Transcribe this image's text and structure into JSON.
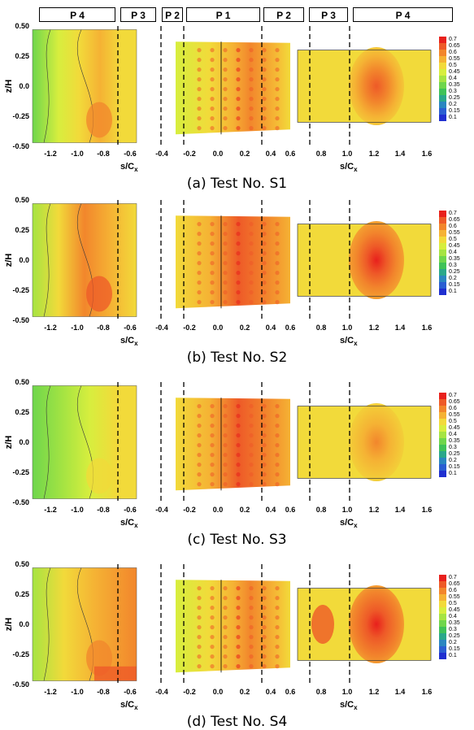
{
  "zones": [
    "P 4",
    "P 3",
    "P 2",
    "P 1",
    "P 2",
    "P 3",
    "P 4"
  ],
  "y_axis": {
    "label": "z/H",
    "ticks": [
      "0.50",
      "0.25",
      "0.0",
      "-0.25",
      "-0.50"
    ]
  },
  "x_axis": {
    "label_left": "s/C",
    "label_right": "s/C",
    "subscript": "x",
    "ticks_left": [
      "-1.2",
      "-1.0",
      "-0.8",
      "-0.6"
    ],
    "ticks_middle": [
      "-0.4",
      "-0.2",
      "0.0",
      "0.2",
      "0.4",
      "0.6"
    ],
    "ticks_right": [
      "0.8",
      "1.0",
      "1.2",
      "1.4",
      "1.6"
    ]
  },
  "legend": {
    "values": [
      "0.7",
      "0.65",
      "0.6",
      "0.55",
      "0.5",
      "0.45",
      "0.4",
      "0.35",
      "0.3",
      "0.25",
      "0.2",
      "0.15",
      "0.1"
    ],
    "colors": [
      "#e8201c",
      "#ee5a28",
      "#f2862c",
      "#f5b234",
      "#f2da3a",
      "#d7ee3e",
      "#a6e442",
      "#6fd64c",
      "#3fc258",
      "#2aa88a",
      "#2a86c0",
      "#2a5ed2",
      "#1f2fd0"
    ]
  },
  "panels": [
    {
      "caption": "(a)  Test  No.  S1"
    },
    {
      "caption": "(b)  Test  No.  S2"
    },
    {
      "caption": "(c)  Test  No.  S3"
    },
    {
      "caption": "(d)  Test  No.  S4"
    }
  ]
}
